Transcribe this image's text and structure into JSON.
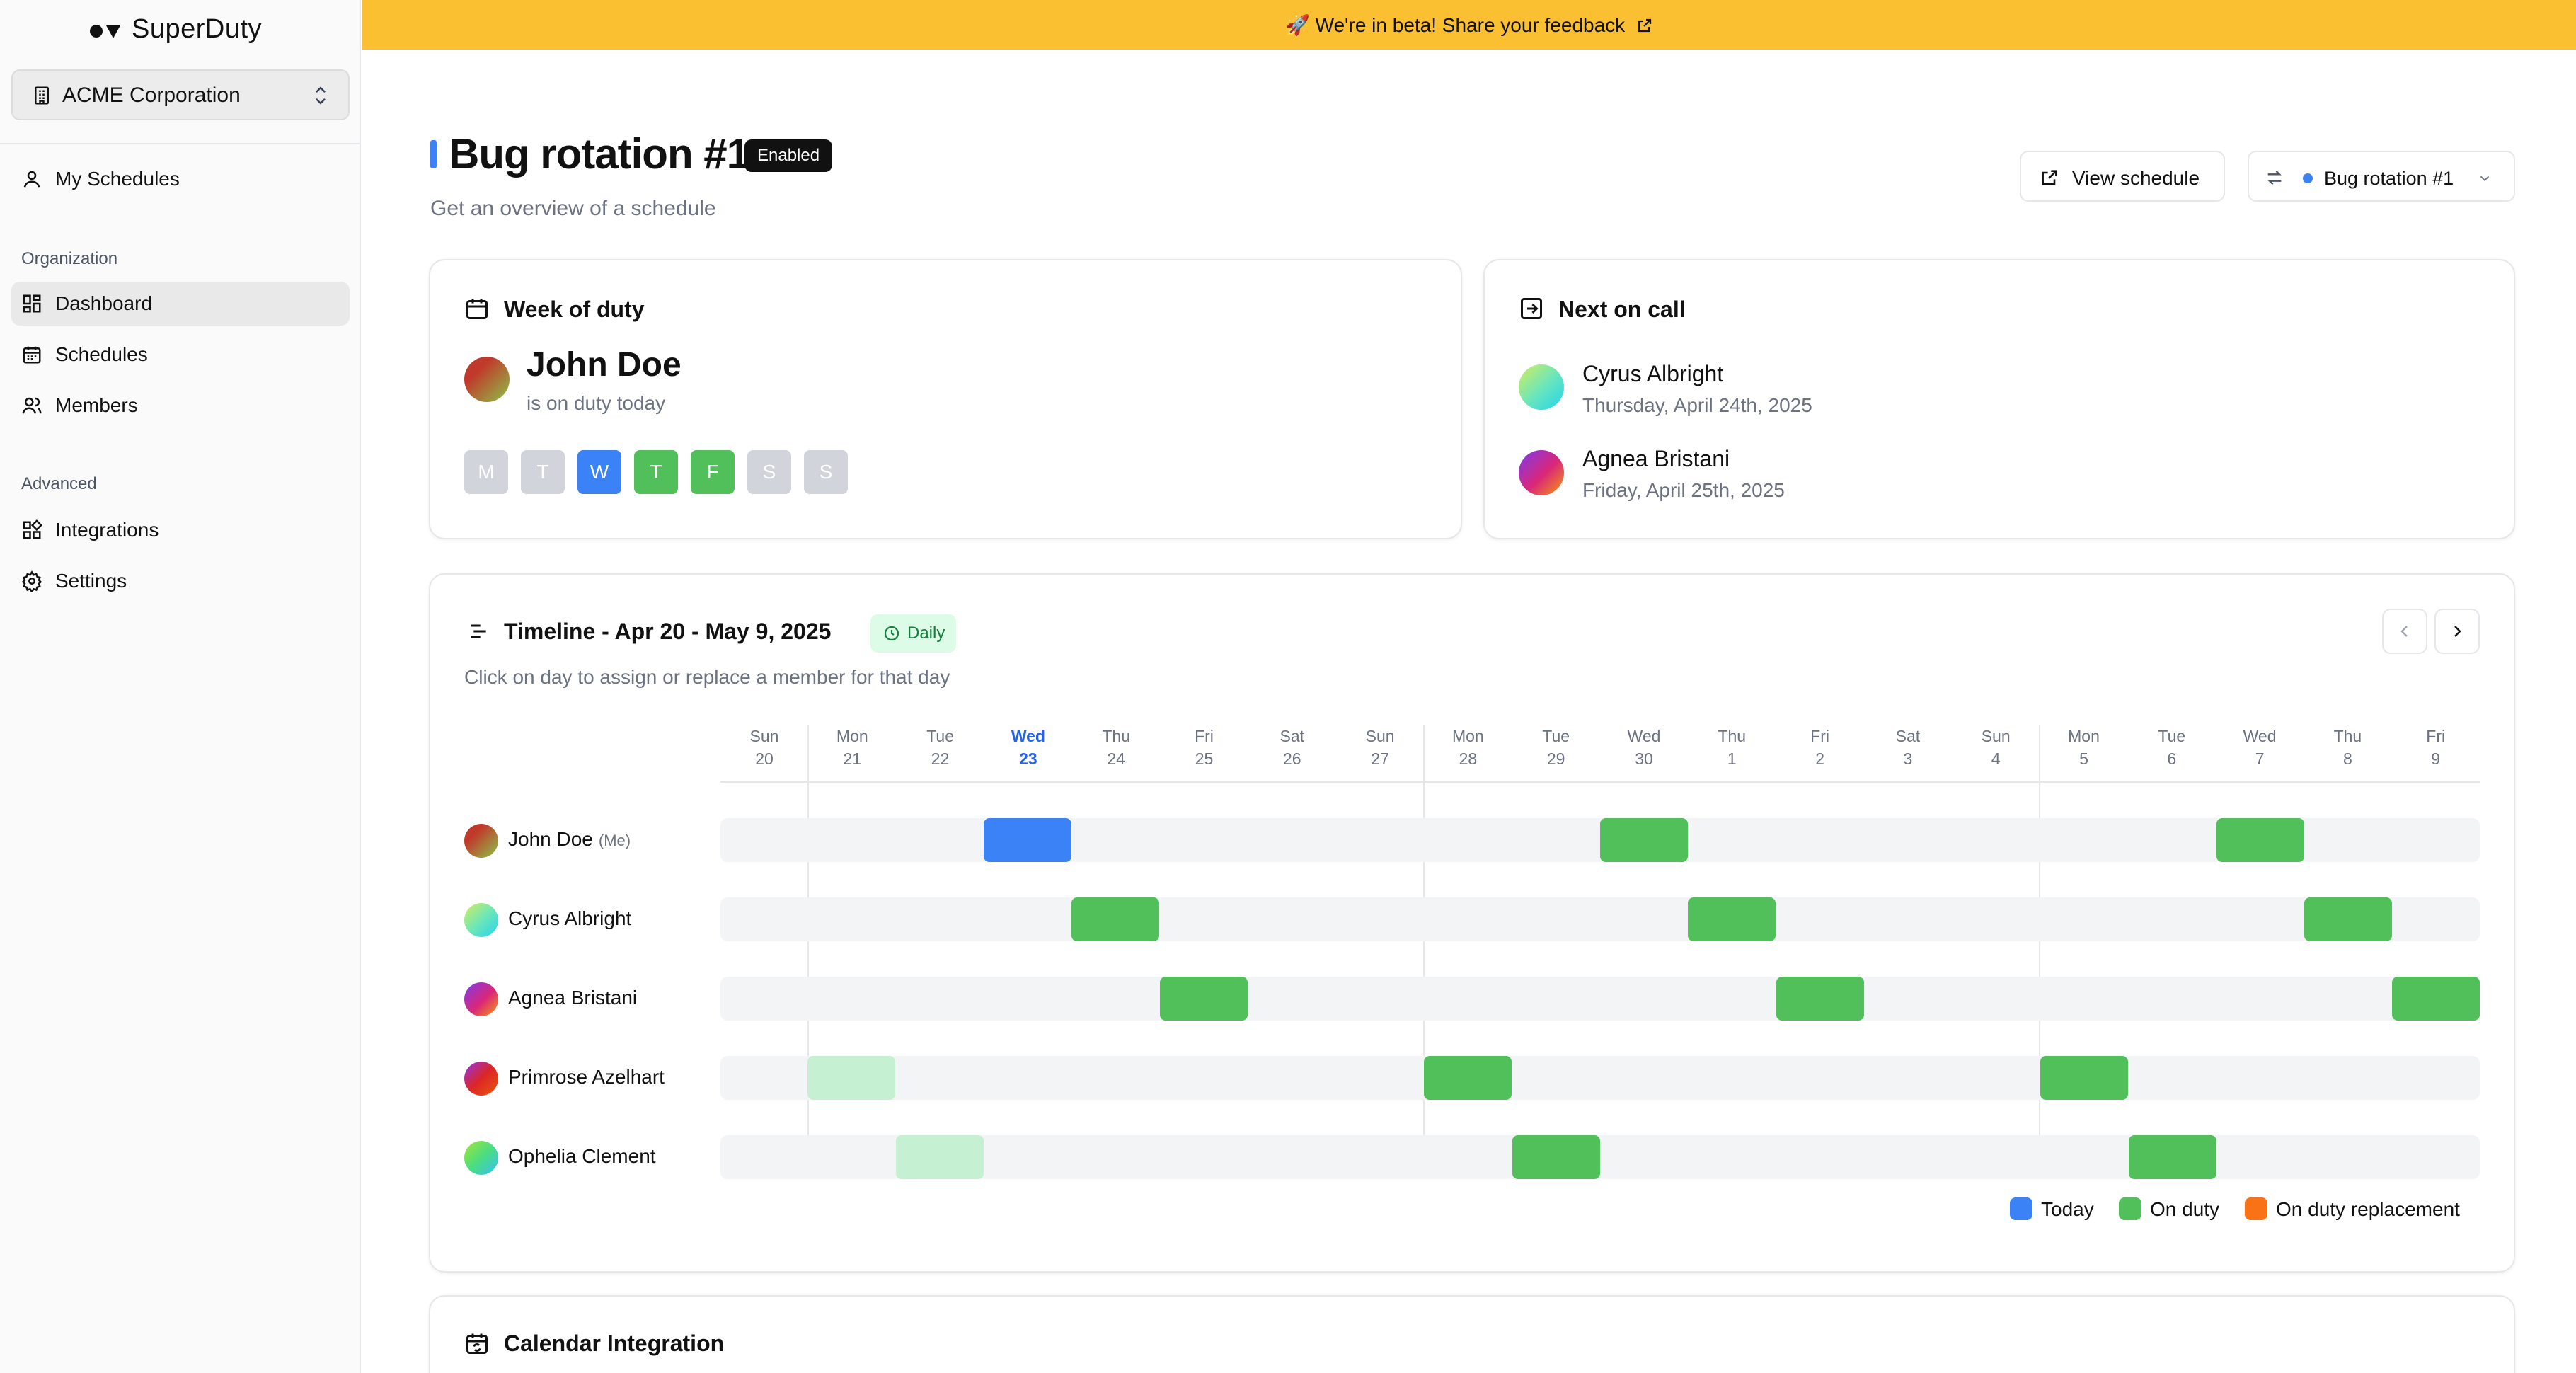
{
  "sidebar": {
    "logo_text": "SuperDuty",
    "org_name": "ACME Corporation",
    "items": [
      {
        "label": "My Schedules"
      },
      {
        "label": "Dashboard"
      },
      {
        "label": "Schedules"
      },
      {
        "label": "Members"
      },
      {
        "label": "Integrations"
      },
      {
        "label": "Settings"
      }
    ],
    "section_organization": "Organization",
    "section_advanced": "Advanced"
  },
  "banner": {
    "text": "🚀 We're in beta!  Share your feedback"
  },
  "header": {
    "title": "Bug rotation #1",
    "badge": "Enabled",
    "subtitle": "Get an overview of a schedule",
    "view_schedule": "View schedule",
    "schedule_select": "Bug rotation #1"
  },
  "week_of_duty": {
    "title": "Week of duty",
    "name": "John Doe",
    "status": "is on duty today",
    "days": [
      "M",
      "T",
      "W",
      "T",
      "F",
      "S",
      "S"
    ]
  },
  "next_on_call": {
    "title": "Next on call",
    "people": [
      {
        "name": "Cyrus Albright",
        "date": "Thursday, April 24th, 2025"
      },
      {
        "name": "Agnea Bristani",
        "date": "Friday, April 25th, 2025"
      }
    ]
  },
  "timeline": {
    "title": "Timeline - Apr 20 - May 9, 2025",
    "badge": "Daily",
    "subtitle": "Click on day to assign or replace a member for that day",
    "columns": [
      {
        "day": "Sun",
        "date": "20"
      },
      {
        "day": "Mon",
        "date": "21"
      },
      {
        "day": "Tue",
        "date": "22"
      },
      {
        "day": "Wed",
        "date": "23"
      },
      {
        "day": "Thu",
        "date": "24"
      },
      {
        "day": "Fri",
        "date": "25"
      },
      {
        "day": "Sat",
        "date": "26"
      },
      {
        "day": "Sun",
        "date": "27"
      },
      {
        "day": "Mon",
        "date": "28"
      },
      {
        "day": "Tue",
        "date": "29"
      },
      {
        "day": "Wed",
        "date": "30"
      },
      {
        "day": "Thu",
        "date": "1"
      },
      {
        "day": "Fri",
        "date": "2"
      },
      {
        "day": "Sat",
        "date": "3"
      },
      {
        "day": "Sun",
        "date": "4"
      },
      {
        "day": "Mon",
        "date": "5"
      },
      {
        "day": "Tue",
        "date": "6"
      },
      {
        "day": "Wed",
        "date": "7"
      },
      {
        "day": "Thu",
        "date": "8"
      },
      {
        "day": "Fri",
        "date": "9"
      }
    ],
    "members": [
      {
        "name": "John Doe",
        "tag": "(Me)"
      },
      {
        "name": "Cyrus Albright",
        "tag": ""
      },
      {
        "name": "Agnea Bristani",
        "tag": ""
      },
      {
        "name": "Primrose Azelhart",
        "tag": ""
      },
      {
        "name": "Ophelia Clement",
        "tag": ""
      }
    ],
    "legend": [
      "Today",
      "On duty",
      "On duty replacement"
    ]
  },
  "calendar_integration": {
    "title": "Calendar Integration"
  },
  "colors": {
    "accent": "#3b82f6",
    "on_duty": "#52c05a",
    "on_duty_light": "#c6f0d2",
    "replacement": "#f97316",
    "banner": "#fbbf32"
  }
}
